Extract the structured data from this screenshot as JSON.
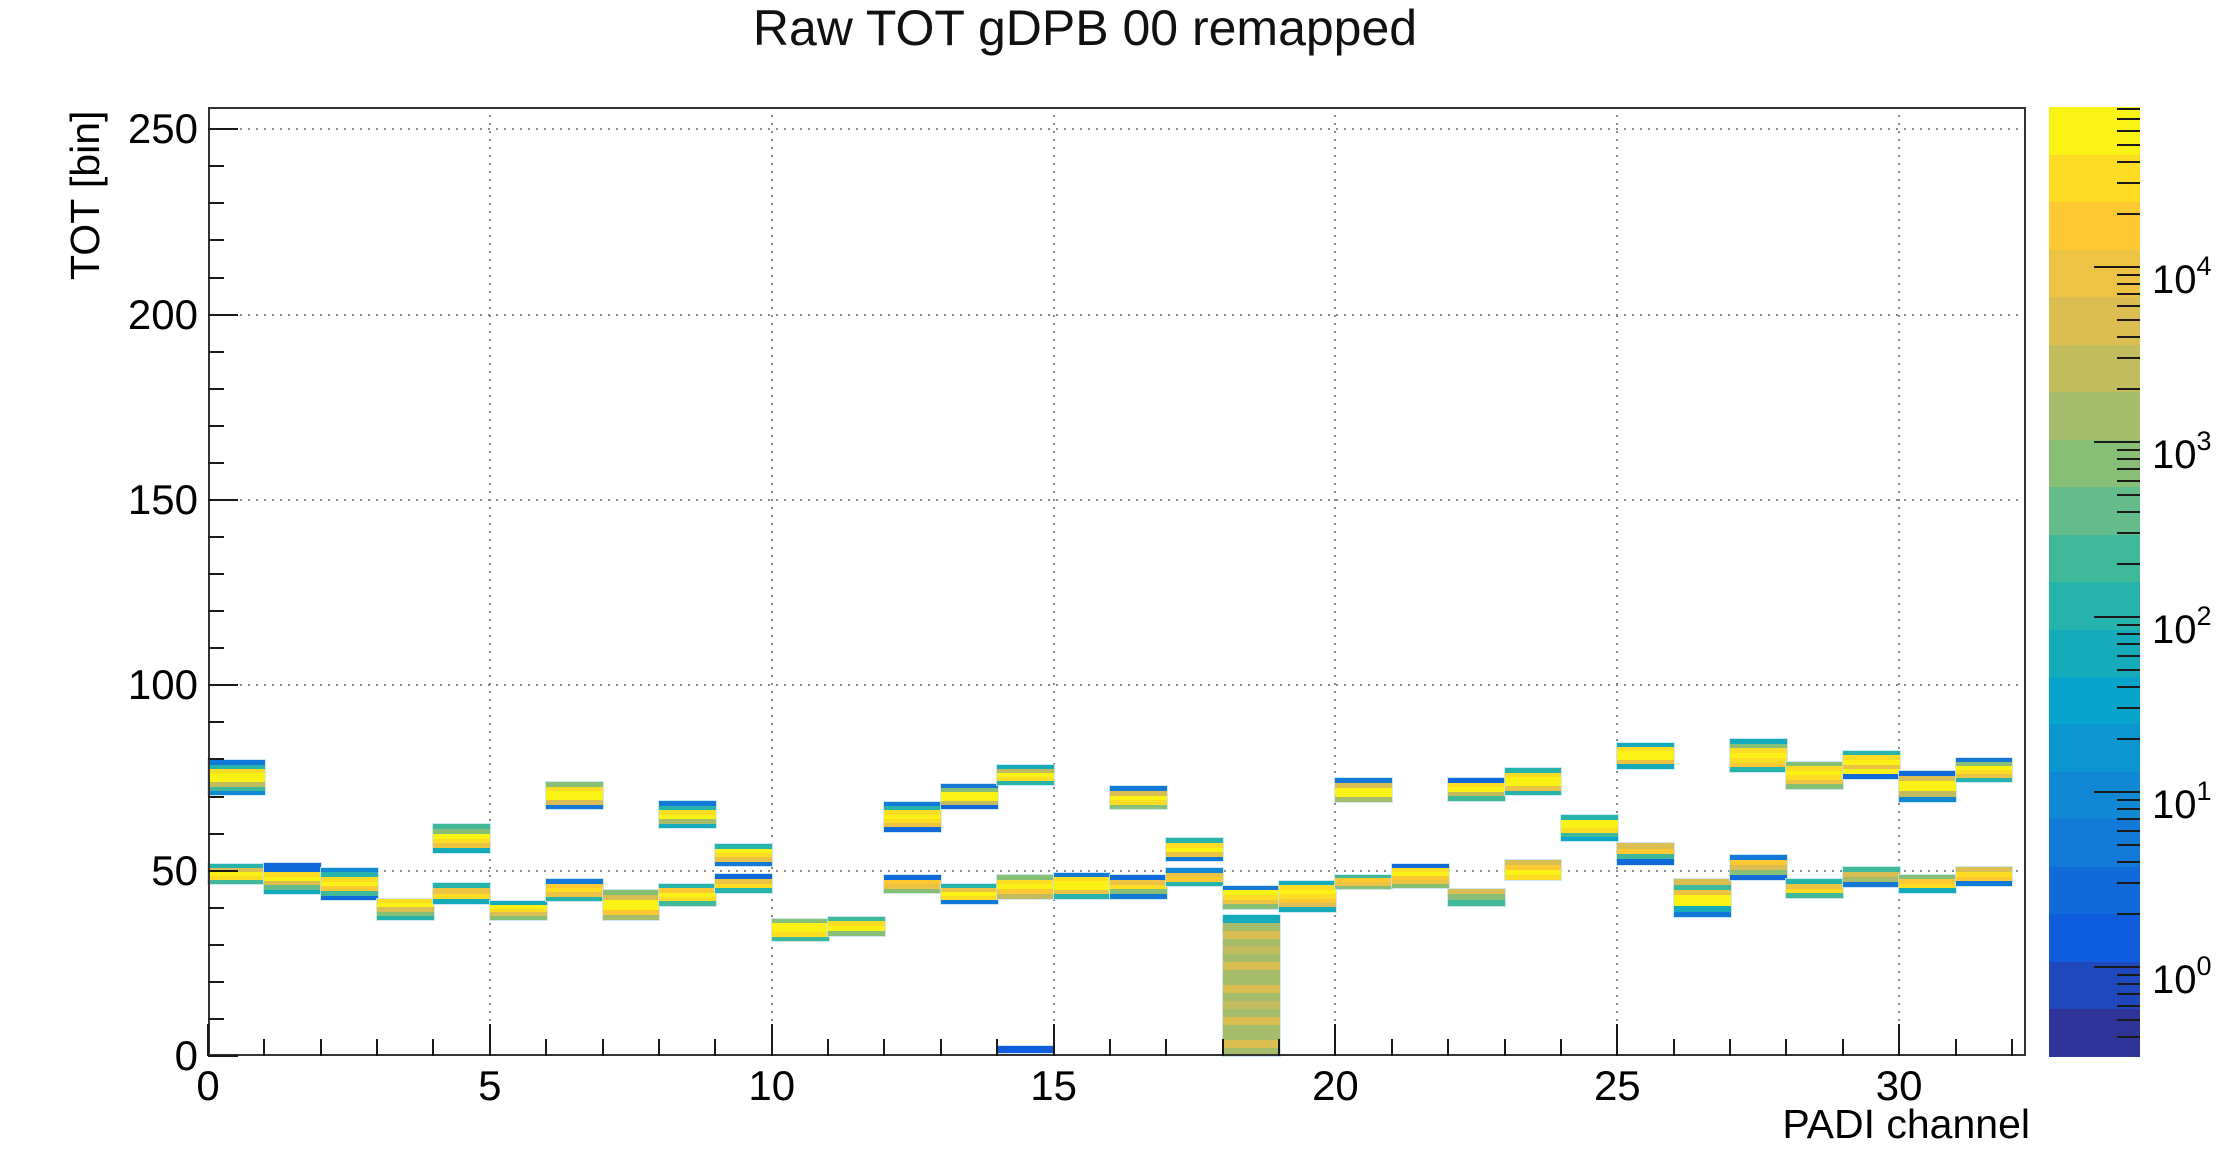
{
  "window": {
    "background": "#ffffff"
  },
  "chart_data": {
    "type": "heatmap",
    "title": "Raw TOT gDPB 00 remapped",
    "xlabel": "PADI channel",
    "ylabel": "TOT [bin]",
    "xlim": [
      0,
      32.25
    ],
    "ylim": [
      0,
      256
    ],
    "x_major_ticks": [
      0,
      5,
      10,
      15,
      20,
      25,
      30
    ],
    "x_minor_step": 1,
    "y_major_ticks": [
      0,
      50,
      100,
      150,
      200,
      250
    ],
    "y_minor_step": 10,
    "grid": "dotted",
    "grid_color": "#8a8a8a",
    "frame_color": "#333333",
    "text_color": "#111111",
    "colorbar": {
      "position": "right",
      "scale": "log",
      "zmin": 0.31,
      "zmax": 82000,
      "base": "10",
      "decade_exponents": [
        4,
        3,
        2,
        1,
        0
      ],
      "levels": 20
    },
    "palette": {
      "name": "ROOT kBird, 20 contour levels, index 0 = lowest count",
      "colors": [
        "#2e3498",
        "#1e48bb",
        "#0f5cdd",
        "#116ada",
        "#1379d7",
        "#1188d3",
        "#0c96cf",
        "#06a4ca",
        "#16abbb",
        "#26b3ab",
        "#40b99b",
        "#63bc89",
        "#87bf77",
        "#a5bd6b",
        "#c2bc5f",
        "#dabe51",
        "#ecc342",
        "#fec832",
        "#fcdd24",
        "#faf115"
      ]
    },
    "channels": [
      {
        "ch": 0,
        "bands": [
          {
            "lo": 70.3,
            "hi": 79.8,
            "rows": [
              4,
              9,
              18,
              19,
              19,
              14,
              10,
              5
            ]
          },
          {
            "lo": 46.5,
            "hi": 51.8,
            "rows": [
              9,
              15,
              19,
              18,
              10
            ]
          }
        ]
      },
      {
        "ch": 1,
        "bands": [
          {
            "lo": 43.6,
            "hi": 52.0,
            "rows": [
              3,
              3,
              18,
              19,
              15,
              11,
              8
            ]
          }
        ]
      },
      {
        "ch": 2,
        "bands": [
          {
            "lo": 42.0,
            "hi": 50.8,
            "rows": [
              5,
              9,
              18,
              19,
              17,
              10,
              3
            ]
          }
        ]
      },
      {
        "ch": 3,
        "bands": [
          {
            "lo": 36.6,
            "hi": 42.4,
            "rows": [
              18,
              19,
              15,
              12,
              9
            ]
          }
        ]
      },
      {
        "ch": 4,
        "bands": [
          {
            "lo": 54.8,
            "hi": 62.5,
            "rows": [
              10,
              12,
              19,
              18,
              16,
              8
            ]
          },
          {
            "lo": 41.0,
            "hi": 46.6,
            "rows": [
              9,
              16,
              18,
              8
            ]
          }
        ]
      },
      {
        "ch": 5,
        "bands": [
          {
            "lo": 36.6,
            "hi": 41.9,
            "rows": [
              8,
              19,
              18,
              15,
              12
            ]
          }
        ]
      },
      {
        "ch": 6,
        "bands": [
          {
            "lo": 66.6,
            "hi": 73.8,
            "rows": [
              12,
              18,
              19,
              19,
              15,
              4
            ]
          },
          {
            "lo": 41.8,
            "hi": 47.7,
            "rows": [
              4,
              17,
              18,
              16,
              9
            ]
          }
        ]
      },
      {
        "ch": 7,
        "bands": [
          {
            "lo": 36.6,
            "hi": 44.9,
            "rows": [
              12,
              15,
              19,
              19,
              17,
              13
            ]
          }
        ]
      },
      {
        "ch": 8,
        "bands": [
          {
            "lo": 61.4,
            "hi": 68.8,
            "rows": [
              4,
              9,
              18,
              19,
              13,
              8
            ]
          },
          {
            "lo": 40.5,
            "hi": 46.4,
            "rows": [
              9,
              17,
              19,
              18,
              10
            ]
          }
        ]
      },
      {
        "ch": 9,
        "bands": [
          {
            "lo": 51.2,
            "hi": 57.1,
            "rows": [
              9,
              19,
              18,
              16,
              4
            ]
          },
          {
            "lo": 44.0,
            "hi": 49.0,
            "rows": [
              3,
              16,
              18,
              9
            ]
          }
        ]
      },
      {
        "ch": 10,
        "bands": [
          {
            "lo": 31.0,
            "hi": 37.0,
            "rows": [
              12,
              19,
              19,
              18,
              10
            ]
          }
        ]
      },
      {
        "ch": 11,
        "bands": [
          {
            "lo": 32.4,
            "hi": 37.6,
            "rows": [
              10,
              18,
              19,
              12
            ]
          }
        ]
      },
      {
        "ch": 12,
        "bands": [
          {
            "lo": 60.5,
            "hi": 68.6,
            "rows": [
              4,
              9,
              18,
              19,
              18,
              16,
              3
            ]
          },
          {
            "lo": 43.9,
            "hi": 48.8,
            "rows": [
              3,
              17,
              16,
              12
            ]
          }
        ]
      },
      {
        "ch": 13,
        "bands": [
          {
            "lo": 66.6,
            "hi": 73.5,
            "rows": [
              4,
              12,
              19,
              19,
              14,
              3
            ]
          },
          {
            "lo": 41.0,
            "hi": 46.4,
            "rows": [
              9,
              16,
              19,
              18,
              4
            ]
          }
        ]
      },
      {
        "ch": 14,
        "bands": [
          {
            "lo": 73.0,
            "hi": 78.6,
            "rows": [
              8,
              14,
              19,
              18,
              9
            ]
          },
          {
            "lo": 42.4,
            "hi": 48.9,
            "rows": [
              12,
              18,
              19,
              17,
              14
            ]
          },
          {
            "lo": 0.8,
            "hi": 2.6,
            "rows": [
              2
            ]
          }
        ]
      },
      {
        "ch": 15,
        "bands": [
          {
            "lo": 42.4,
            "hi": 49.4,
            "rows": [
              4,
              18,
              19,
              19,
              16,
              9
            ]
          }
        ]
      },
      {
        "ch": 16,
        "bands": [
          {
            "lo": 66.6,
            "hi": 72.7,
            "rows": [
              4,
              15,
              19,
              18,
              12
            ]
          },
          {
            "lo": 42.4,
            "hi": 48.8,
            "rows": [
              3,
              16,
              18,
              12,
              4
            ]
          }
        ]
      },
      {
        "ch": 17,
        "bands": [
          {
            "lo": 52.5,
            "hi": 58.7,
            "rows": [
              9,
              18,
              19,
              16,
              4
            ]
          },
          {
            "lo": 45.8,
            "hi": 50.6,
            "rows": [
              5,
              16,
              17,
              9
            ]
          }
        ]
      },
      {
        "ch": 18,
        "bands": [
          {
            "lo": 39.7,
            "hi": 45.9,
            "rows": [
              4,
              19,
              18,
              16,
              12
            ]
          },
          {
            "lo": 0,
            "hi": 38.0,
            "rows": [
              8,
              13,
              15,
              13,
              14,
              13,
              15,
              13,
              13,
              15,
              13,
              14,
              13,
              15,
              13,
              13,
              15,
              13
            ]
          }
        ]
      },
      {
        "ch": 19,
        "bands": [
          {
            "lo": 38.9,
            "hi": 47.2,
            "rows": [
              8,
              18,
              19,
              18,
              17,
              15,
              8
            ]
          }
        ]
      },
      {
        "ch": 20,
        "bands": [
          {
            "lo": 68.6,
            "hi": 74.9,
            "rows": [
              4,
              15,
              19,
              19,
              13
            ]
          },
          {
            "lo": 45.0,
            "hi": 48.9,
            "rows": [
              10,
              17,
              16,
              12
            ]
          }
        ]
      },
      {
        "ch": 21,
        "bands": [
          {
            "lo": 45.3,
            "hi": 51.8,
            "rows": [
              3,
              18,
              19,
              17,
              16,
              12
            ]
          }
        ]
      },
      {
        "ch": 22,
        "bands": [
          {
            "lo": 68.9,
            "hi": 74.9,
            "rows": [
              3,
              18,
              19,
              14,
              10
            ]
          },
          {
            "lo": 40.5,
            "hi": 45.1,
            "rows": [
              15,
              12,
              10
            ]
          }
        ]
      },
      {
        "ch": 23,
        "bands": [
          {
            "lo": 70.4,
            "hi": 77.6,
            "rows": [
              9,
              18,
              19,
              19,
              16,
              9
            ]
          },
          {
            "lo": 47.6,
            "hi": 52.9,
            "rows": [
              15,
              17,
              19,
              18
            ]
          }
        ]
      },
      {
        "ch": 24,
        "bands": [
          {
            "lo": 57.9,
            "hi": 64.9,
            "rows": [
              9,
              19,
              19,
              18,
              10,
              7
            ]
          }
        ]
      },
      {
        "ch": 25,
        "bands": [
          {
            "lo": 77.5,
            "hi": 84.5,
            "rows": [
              8,
              18,
              19,
              19,
              16,
              8
            ]
          },
          {
            "lo": 51.6,
            "hi": 57.4,
            "rows": [
              15,
              17,
              10,
              3
            ]
          }
        ]
      },
      {
        "ch": 26,
        "bands": [
          {
            "lo": 37.5,
            "hi": 47.7,
            "rows": [
              15,
              10,
              16,
              19,
              19,
              8,
              4
            ]
          }
        ]
      },
      {
        "ch": 27,
        "bands": [
          {
            "lo": 76.6,
            "hi": 85.5,
            "rows": [
              8,
              12,
              18,
              19,
              18,
              17,
              9
            ]
          },
          {
            "lo": 47.6,
            "hi": 54.1,
            "rows": [
              4,
              17,
              15,
              12,
              3
            ]
          }
        ]
      },
      {
        "ch": 28,
        "bands": [
          {
            "lo": 72.1,
            "hi": 79.4,
            "rows": [
              12,
              18,
              19,
              18,
              16,
              12
            ]
          },
          {
            "lo": 42.6,
            "hi": 47.7,
            "rows": [
              9,
              16,
              18,
              10
            ]
          }
        ]
      },
      {
        "ch": 29,
        "bands": [
          {
            "lo": 74.8,
            "hi": 82.4,
            "rows": [
              9,
              18,
              19,
              16,
              19,
              3
            ]
          },
          {
            "lo": 45.5,
            "hi": 51.0,
            "rows": [
              10,
              15,
              13,
              4
            ]
          }
        ]
      },
      {
        "ch": 30,
        "bands": [
          {
            "lo": 68.6,
            "hi": 76.9,
            "rows": [
              3,
              15,
              19,
              19,
              14,
              5
            ]
          },
          {
            "lo": 44.0,
            "hi": 48.9,
            "rows": [
              12,
              17,
              18,
              8
            ]
          }
        ]
      },
      {
        "ch": 31,
        "bands": [
          {
            "lo": 74.0,
            "hi": 80.4,
            "rows": [
              4,
              12,
              19,
              18,
              16,
              9
            ]
          },
          {
            "lo": 45.8,
            "hi": 50.9,
            "rows": [
              15,
              18,
              17,
              4
            ]
          }
        ]
      }
    ]
  }
}
